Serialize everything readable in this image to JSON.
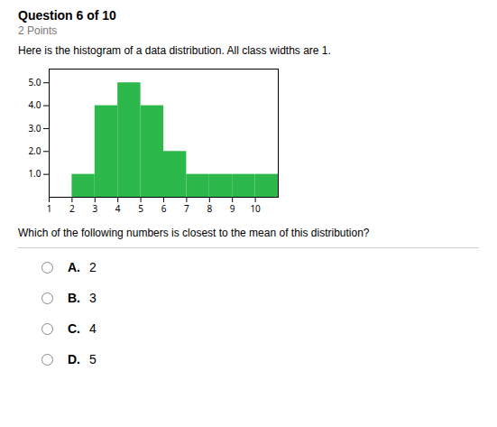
{
  "chart_data": {
    "type": "histogram",
    "title": "Question 6 of 10",
    "subtitle": "2 Points",
    "annotations": [
      "Here is the histogram of a data distribution. All class widths are 1.",
      "Which of the following numbers is closest to the mean of this distribution?",
      "A.",
      "2",
      "B.",
      "3",
      "C.",
      "4",
      "D.",
      "5"
    ],
    "bins": [
      2,
      3,
      4,
      5,
      6,
      7,
      8,
      9,
      10,
      11
    ],
    "values": [
      1,
      4,
      5,
      4,
      2,
      1,
      1,
      1,
      1
    ],
    "color": "#2db84b",
    "xlim": [
      1,
      11
    ],
    "ylim": [
      0,
      5.6
    ],
    "xticks": [
      1,
      2,
      3,
      4,
      5,
      6,
      7,
      8,
      9,
      10
    ],
    "yticks": [
      1,
      2,
      3,
      4,
      5
    ],
    "grid": false
  }
}
